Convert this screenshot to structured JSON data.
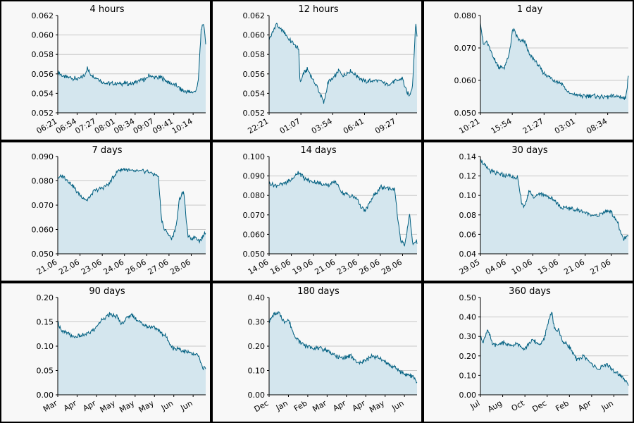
{
  "chart_data": [
    {
      "type": "area",
      "title": "4 hours",
      "yticks": [
        "0.052",
        "0.054",
        "0.056",
        "0.058",
        "0.060",
        "0.062"
      ],
      "ylim": [
        0.052,
        0.062
      ],
      "xticks": [
        "06:21",
        "06:54",
        "07:27",
        "08:01",
        "08:34",
        "09:07",
        "09:41",
        "10:14"
      ],
      "x": [
        0,
        0.03,
        0.07,
        0.1,
        0.14,
        0.18,
        0.2,
        0.22,
        0.26,
        0.3,
        0.35,
        0.4,
        0.45,
        0.5,
        0.55,
        0.6,
        0.62,
        0.65,
        0.7,
        0.75,
        0.8,
        0.83,
        0.86,
        0.9,
        0.93,
        0.95,
        0.97,
        0.99,
        1
      ],
      "values": [
        0.0562,
        0.0558,
        0.0556,
        0.0556,
        0.0554,
        0.0558,
        0.0566,
        0.056,
        0.0556,
        0.0552,
        0.055,
        0.055,
        0.055,
        0.055,
        0.0553,
        0.0555,
        0.0559,
        0.0556,
        0.0556,
        0.0551,
        0.0548,
        0.0544,
        0.0542,
        0.0541,
        0.0542,
        0.0552,
        0.0607,
        0.061,
        0.059
      ]
    },
    {
      "type": "area",
      "title": "12 hours",
      "yticks": [
        "0.052",
        "0.054",
        "0.056",
        "0.058",
        "0.060",
        "0.062"
      ],
      "ylim": [
        0.052,
        0.062
      ],
      "xticks": [
        "22:21",
        "01:07",
        "03:54",
        "06:41",
        "09:27"
      ],
      "x": [
        0,
        0.02,
        0.05,
        0.07,
        0.1,
        0.13,
        0.17,
        0.2,
        0.21,
        0.23,
        0.26,
        0.3,
        0.33,
        0.37,
        0.4,
        0.43,
        0.47,
        0.5,
        0.55,
        0.6,
        0.65,
        0.7,
        0.75,
        0.8,
        0.85,
        0.9,
        0.93,
        0.95,
        0.97,
        0.99,
        1
      ],
      "values": [
        0.0596,
        0.0601,
        0.0612,
        0.0606,
        0.0604,
        0.0596,
        0.059,
        0.0585,
        0.055,
        0.056,
        0.0565,
        0.0553,
        0.0545,
        0.053,
        0.0552,
        0.0555,
        0.0563,
        0.0558,
        0.0563,
        0.0557,
        0.0552,
        0.0553,
        0.0553,
        0.0549,
        0.0552,
        0.0556,
        0.0541,
        0.0538,
        0.0548,
        0.0612,
        0.06
      ]
    },
    {
      "type": "area",
      "title": "1 day",
      "yticks": [
        "0.050",
        "0.060",
        "0.070",
        "0.080"
      ],
      "ylim": [
        0.05,
        0.08
      ],
      "xticks": [
        "10:21",
        "15:54",
        "21:27",
        "03:01",
        "08:34"
      ],
      "x": [
        0,
        0.02,
        0.04,
        0.07,
        0.1,
        0.13,
        0.16,
        0.19,
        0.22,
        0.24,
        0.27,
        0.3,
        0.33,
        0.37,
        0.4,
        0.43,
        0.47,
        0.5,
        0.55,
        0.6,
        0.65,
        0.7,
        0.75,
        0.8,
        0.85,
        0.9,
        0.95,
        0.98,
        1
      ],
      "values": [
        0.078,
        0.071,
        0.072,
        0.069,
        0.066,
        0.064,
        0.064,
        0.067,
        0.076,
        0.074,
        0.072,
        0.072,
        0.068,
        0.066,
        0.064,
        0.062,
        0.061,
        0.06,
        0.059,
        0.056,
        0.0555,
        0.055,
        0.0553,
        0.055,
        0.0548,
        0.0552,
        0.0549,
        0.0543,
        0.061
      ]
    },
    {
      "type": "area",
      "title": "7 days",
      "yticks": [
        "0.050",
        "0.060",
        "0.070",
        "0.080",
        "0.090"
      ],
      "ylim": [
        0.05,
        0.09
      ],
      "xticks": [
        "21.06",
        "22.06",
        "23.06",
        "24.06",
        "26.06",
        "27.06",
        "28.06"
      ],
      "x": [
        0,
        0.03,
        0.07,
        0.1,
        0.15,
        0.2,
        0.25,
        0.3,
        0.35,
        0.4,
        0.45,
        0.5,
        0.55,
        0.6,
        0.68,
        0.7,
        0.72,
        0.75,
        0.77,
        0.8,
        0.82,
        0.85,
        0.88,
        0.9,
        0.93,
        0.96,
        1
      ],
      "values": [
        0.081,
        0.082,
        0.08,
        0.078,
        0.074,
        0.072,
        0.076,
        0.077,
        0.079,
        0.084,
        0.085,
        0.084,
        0.084,
        0.084,
        0.082,
        0.065,
        0.06,
        0.058,
        0.056,
        0.061,
        0.072,
        0.076,
        0.057,
        0.056,
        0.057,
        0.055,
        0.059
      ]
    },
    {
      "type": "area",
      "title": "14 days",
      "yticks": [
        "0.050",
        "0.060",
        "0.070",
        "0.080",
        "0.090",
        "0.100"
      ],
      "ylim": [
        0.05,
        0.1
      ],
      "xticks": [
        "14.06",
        "16.06",
        "19.06",
        "21.06",
        "23.06",
        "26.06",
        "28.06"
      ],
      "x": [
        0,
        0.05,
        0.1,
        0.15,
        0.2,
        0.25,
        0.3,
        0.35,
        0.4,
        0.45,
        0.5,
        0.55,
        0.6,
        0.62,
        0.65,
        0.7,
        0.75,
        0.8,
        0.85,
        0.87,
        0.89,
        0.92,
        0.95,
        0.97,
        1
      ],
      "values": [
        0.086,
        0.085,
        0.086,
        0.088,
        0.092,
        0.088,
        0.087,
        0.086,
        0.085,
        0.087,
        0.081,
        0.08,
        0.078,
        0.074,
        0.072,
        0.079,
        0.084,
        0.084,
        0.083,
        0.068,
        0.056,
        0.055,
        0.071,
        0.055,
        0.056
      ]
    },
    {
      "type": "area",
      "title": "30 days",
      "yticks": [
        "0.04",
        "0.06",
        "0.08",
        "0.10",
        "0.12",
        "0.14"
      ],
      "ylim": [
        0.04,
        0.14
      ],
      "xticks": [
        "29.05",
        "04.06",
        "10.06",
        "15.06",
        "21.06",
        "27.06"
      ],
      "x": [
        0,
        0.03,
        0.07,
        0.1,
        0.15,
        0.2,
        0.25,
        0.28,
        0.3,
        0.33,
        0.36,
        0.4,
        0.45,
        0.5,
        0.55,
        0.6,
        0.65,
        0.7,
        0.75,
        0.8,
        0.85,
        0.88,
        0.9,
        0.93,
        0.95,
        0.97,
        1
      ],
      "values": [
        0.138,
        0.13,
        0.125,
        0.123,
        0.121,
        0.12,
        0.118,
        0.092,
        0.088,
        0.105,
        0.098,
        0.102,
        0.1,
        0.095,
        0.087,
        0.087,
        0.085,
        0.083,
        0.08,
        0.079,
        0.084,
        0.084,
        0.078,
        0.072,
        0.06,
        0.055,
        0.058
      ]
    },
    {
      "type": "area",
      "title": "90 days",
      "yticks": [
        "0.00",
        "0.05",
        "0.10",
        "0.15",
        "0.20"
      ],
      "ylim": [
        0,
        0.2
      ],
      "xticks": [
        "Mar",
        "Apr",
        "Apr",
        "May",
        "May",
        "May",
        "Jun",
        "Jun"
      ],
      "x": [
        0,
        0.03,
        0.07,
        0.1,
        0.15,
        0.2,
        0.25,
        0.3,
        0.35,
        0.4,
        0.43,
        0.47,
        0.5,
        0.55,
        0.6,
        0.65,
        0.7,
        0.73,
        0.75,
        0.78,
        0.82,
        0.85,
        0.9,
        0.95,
        0.98,
        1
      ],
      "values": [
        0.15,
        0.13,
        0.125,
        0.12,
        0.12,
        0.125,
        0.135,
        0.155,
        0.165,
        0.16,
        0.145,
        0.16,
        0.165,
        0.15,
        0.14,
        0.14,
        0.128,
        0.12,
        0.11,
        0.095,
        0.095,
        0.09,
        0.085,
        0.08,
        0.056,
        0.055
      ]
    },
    {
      "type": "area",
      "title": "180 days",
      "yticks": [
        "0.00",
        "0.10",
        "0.20",
        "0.30",
        "0.40"
      ],
      "ylim": [
        0,
        0.4
      ],
      "xticks": [
        "Dec",
        "Jan",
        "Feb",
        "Mar",
        "Apr",
        "Apr",
        "May",
        "Jun"
      ],
      "x": [
        0,
        0.03,
        0.07,
        0.1,
        0.13,
        0.16,
        0.2,
        0.25,
        0.3,
        0.35,
        0.4,
        0.45,
        0.5,
        0.55,
        0.6,
        0.65,
        0.7,
        0.75,
        0.8,
        0.85,
        0.9,
        0.95,
        0.98,
        1
      ],
      "values": [
        0.3,
        0.33,
        0.335,
        0.3,
        0.31,
        0.26,
        0.22,
        0.2,
        0.195,
        0.19,
        0.18,
        0.16,
        0.15,
        0.16,
        0.13,
        0.14,
        0.16,
        0.15,
        0.13,
        0.11,
        0.09,
        0.08,
        0.07,
        0.055
      ]
    },
    {
      "type": "area",
      "title": "360 days",
      "yticks": [
        "0.00",
        "0.10",
        "0.20",
        "0.30",
        "0.40",
        "0.50"
      ],
      "ylim": [
        0,
        0.5
      ],
      "xticks": [
        "Jul",
        "Aug",
        "Oct",
        "Dec",
        "Feb",
        "Apr",
        "Jun"
      ],
      "x": [
        0,
        0.02,
        0.05,
        0.08,
        0.11,
        0.15,
        0.2,
        0.25,
        0.3,
        0.35,
        0.4,
        0.43,
        0.45,
        0.48,
        0.5,
        0.53,
        0.56,
        0.6,
        0.65,
        0.7,
        0.75,
        0.8,
        0.85,
        0.9,
        0.95,
        0.98,
        1
      ],
      "values": [
        0.3,
        0.27,
        0.34,
        0.26,
        0.25,
        0.27,
        0.25,
        0.26,
        0.24,
        0.28,
        0.26,
        0.28,
        0.35,
        0.43,
        0.34,
        0.33,
        0.27,
        0.25,
        0.18,
        0.2,
        0.16,
        0.13,
        0.16,
        0.12,
        0.1,
        0.07,
        0.055
      ]
    }
  ]
}
